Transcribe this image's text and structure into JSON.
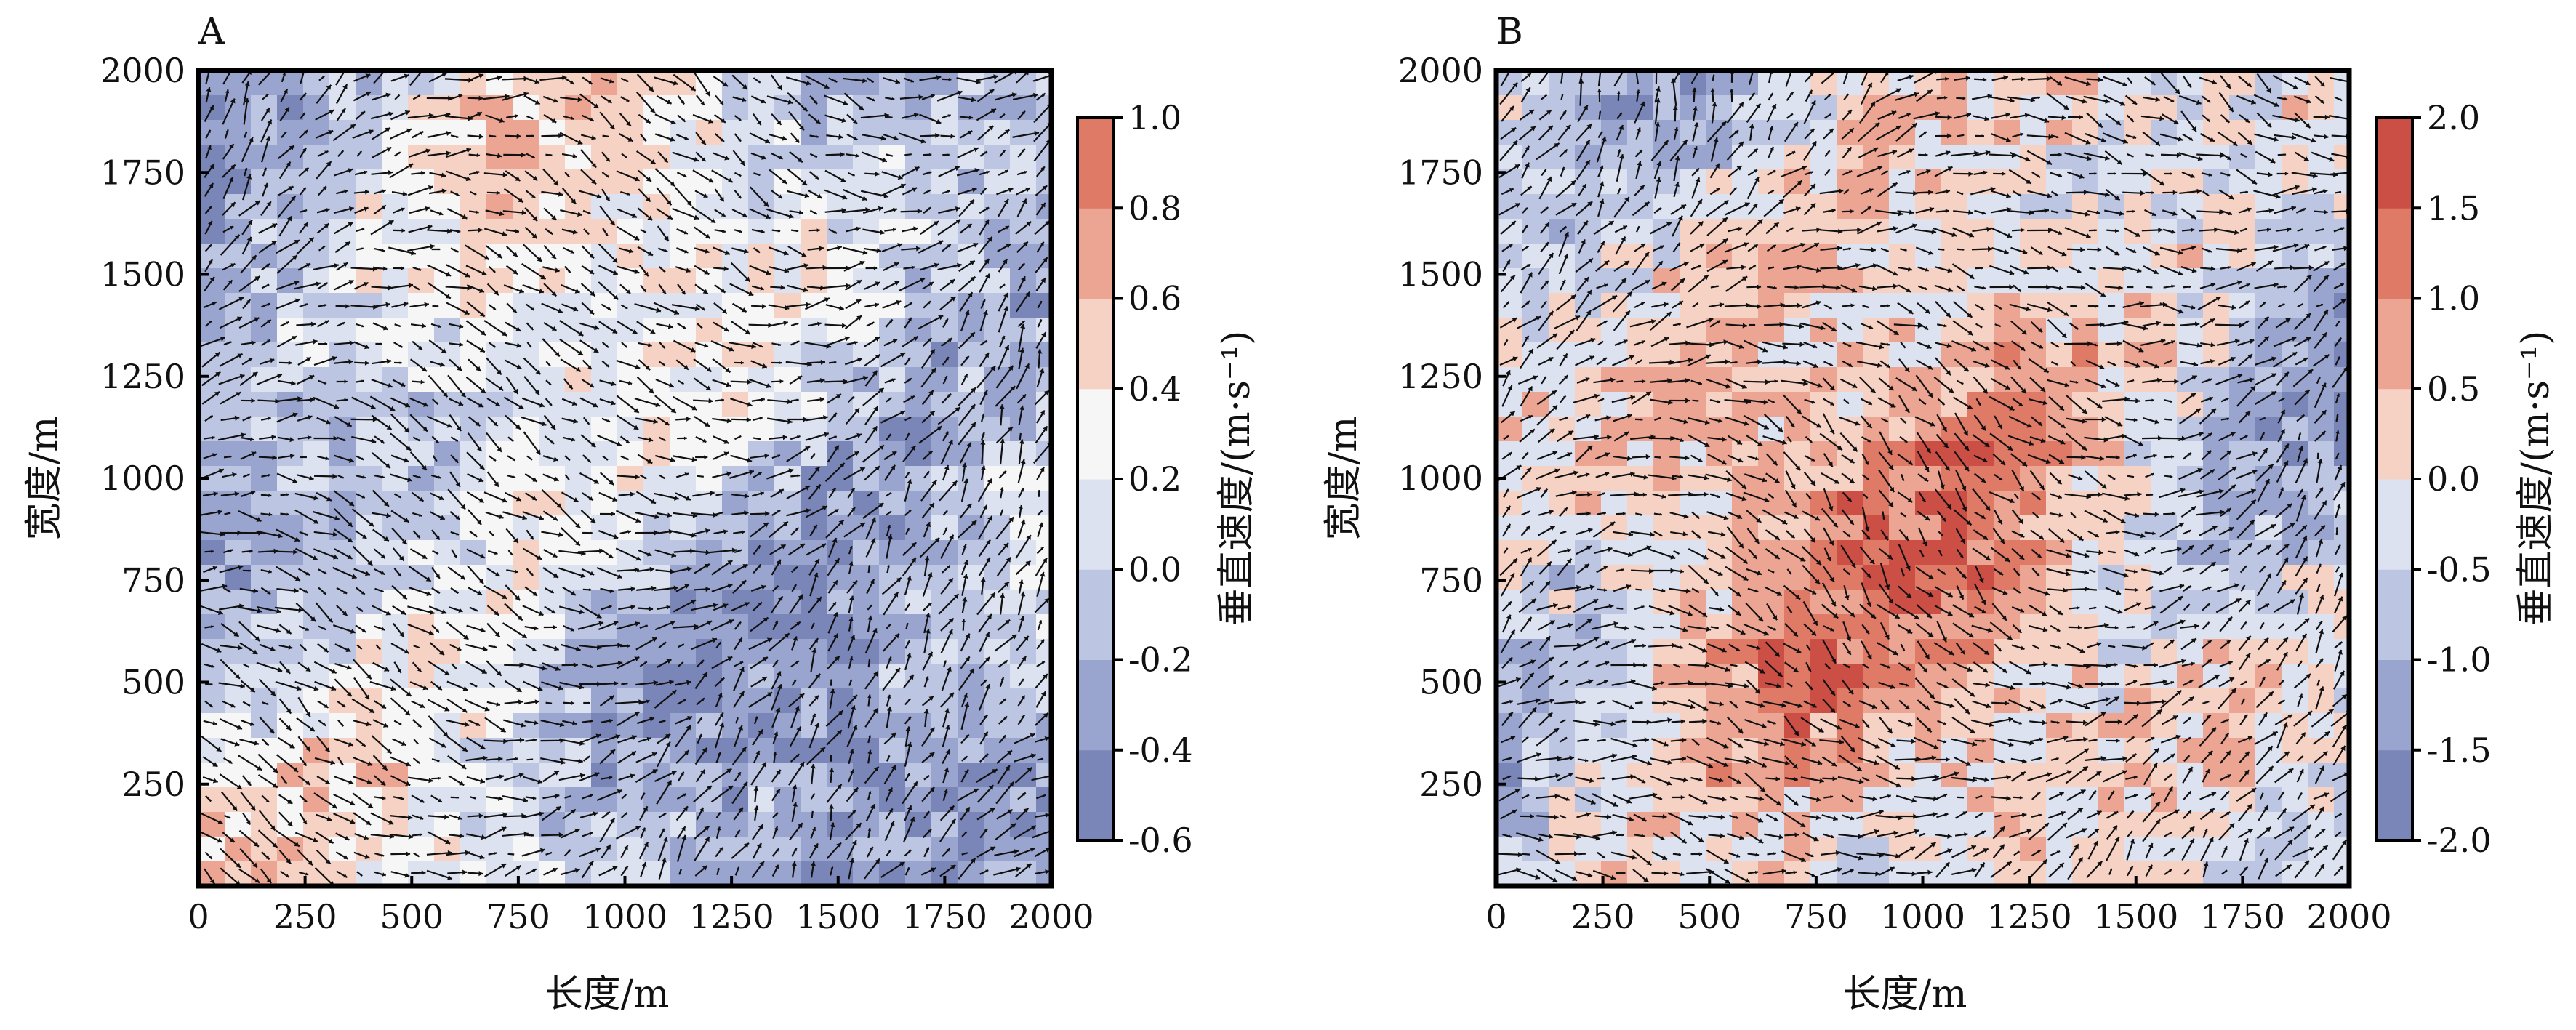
{
  "chart_data": [
    {
      "panel": "A",
      "type": "heatmap",
      "xlabel": "长度/m",
      "ylabel": "宽度/m",
      "colorbar_label": "垂直速度/(m·s⁻¹)",
      "xlim": [
        0,
        2000
      ],
      "ylim": [
        0,
        2000
      ],
      "x_ticks": [
        "0",
        "250",
        "500",
        "750",
        "1000",
        "1250",
        "1500",
        "1750",
        "2000"
      ],
      "y_ticks": [
        "250",
        "500",
        "750",
        "1000",
        "1250",
        "1500",
        "1750",
        "2000"
      ],
      "colorbar_ticks": [
        "1.0",
        "0.8",
        "0.6",
        "0.4",
        "0.2",
        "0.0",
        "-0.2",
        "-0.4",
        "-0.6"
      ],
      "levels": [
        -0.6,
        -0.4,
        -0.2,
        0.0,
        0.2,
        0.4,
        0.6,
        0.8,
        1.0
      ],
      "level_colors": [
        "#7a85b8",
        "#9aa5cf",
        "#bcc5e2",
        "#dde2f1",
        "#f6f6f6",
        "#f6d2c5",
        "#eba592",
        "#df7a67"
      ],
      "vector_overlay": true
    },
    {
      "panel": "B",
      "type": "heatmap",
      "xlabel": "长度/m",
      "ylabel": "宽度/m",
      "colorbar_label": "垂直速度/(m·s⁻¹)",
      "xlim": [
        0,
        2000
      ],
      "ylim": [
        0,
        2000
      ],
      "x_ticks": [
        "0",
        "250",
        "500",
        "750",
        "1000",
        "1250",
        "1500",
        "1750",
        "2000"
      ],
      "y_ticks": [
        "250",
        "500",
        "750",
        "1000",
        "1250",
        "1500",
        "1750",
        "2000"
      ],
      "colorbar_ticks": [
        "2.0",
        "1.5",
        "1.0",
        "0.5",
        "0.0",
        "-0.5",
        "-1.0",
        "-1.5",
        "-2.0"
      ],
      "levels": [
        -2.0,
        -1.5,
        -1.0,
        -0.5,
        0.0,
        0.5,
        1.0,
        1.5,
        2.0
      ],
      "level_colors": [
        "#7a85b8",
        "#9aa5cf",
        "#bcc5e2",
        "#dde2f1",
        "#f6d2c5",
        "#eba592",
        "#df7a67",
        "#cc4f45"
      ],
      "vector_overlay": true
    }
  ]
}
